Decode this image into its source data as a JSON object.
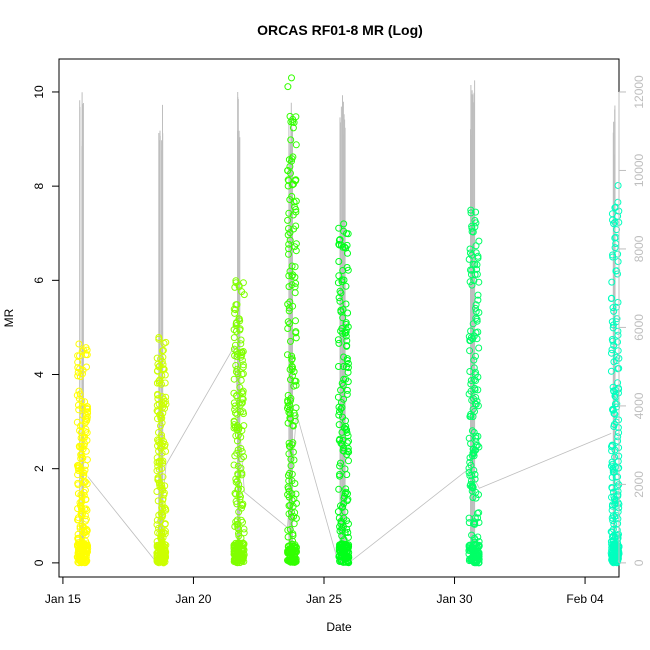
{
  "chart_data": {
    "type": "scatter",
    "title": "ORCAS RF01-8 MR (Log)",
    "xlabel": "Date",
    "ylabel": "MR",
    "x_ticks": [
      "Jan 15",
      "Jan 20",
      "Jan 25",
      "Jan 30",
      "Feb 04"
    ],
    "x_tick_days": [
      15,
      20,
      25,
      30,
      35
    ],
    "xlim_days": [
      14.85,
      36.3
    ],
    "y_ticks": [
      "0",
      "2",
      "4",
      "6",
      "8",
      "10"
    ],
    "ylim": [
      -0.3,
      10.7
    ],
    "right_axis": {
      "ticks": [
        "0",
        "2000",
        "4000",
        "6000",
        "8000",
        "10000",
        "12000"
      ],
      "ylim": [
        -360,
        12840
      ],
      "color": "#bebebe"
    },
    "flights": [
      {
        "x_start": 15.55,
        "x_end": 15.95,
        "mr_max": 4.7,
        "color": "#ffff00",
        "alt_max": 12000
      },
      {
        "x_start": 18.6,
        "x_end": 18.95,
        "mr_max": 5.0,
        "color": "#ccff00",
        "alt_max": 11900
      },
      {
        "x_start": 21.55,
        "x_end": 21.95,
        "mr_max": 6.0,
        "color": "#80ff00",
        "alt_max": 12100
      },
      {
        "x_start": 23.6,
        "x_end": 23.95,
        "mr_max": 10.35,
        "color": "#33ff00",
        "alt_max": 12000
      },
      {
        "x_start": 25.55,
        "x_end": 25.95,
        "mr_max": 7.25,
        "color": "#00ff1a",
        "alt_max": 12000
      },
      {
        "x_start": 30.55,
        "x_end": 30.95,
        "mr_max": 7.55,
        "color": "#00ff66",
        "alt_max": 12300
      },
      {
        "x_start": 36.0,
        "x_end": 36.3,
        "mr_max": 8.05,
        "color": "#00ffbf",
        "alt_max": 11800
      }
    ],
    "altitude_series": {
      "name": "",
      "color": "#bebebe",
      "x": [
        15.95,
        18.6,
        18.95,
        21.55,
        21.95,
        23.6,
        23.95,
        25.55,
        25.95,
        30.55,
        30.95,
        36.0
      ],
      "y": [
        2200,
        0,
        2500,
        5500,
        1800,
        900,
        3800,
        0,
        0,
        2400,
        1900,
        3300
      ]
    }
  }
}
